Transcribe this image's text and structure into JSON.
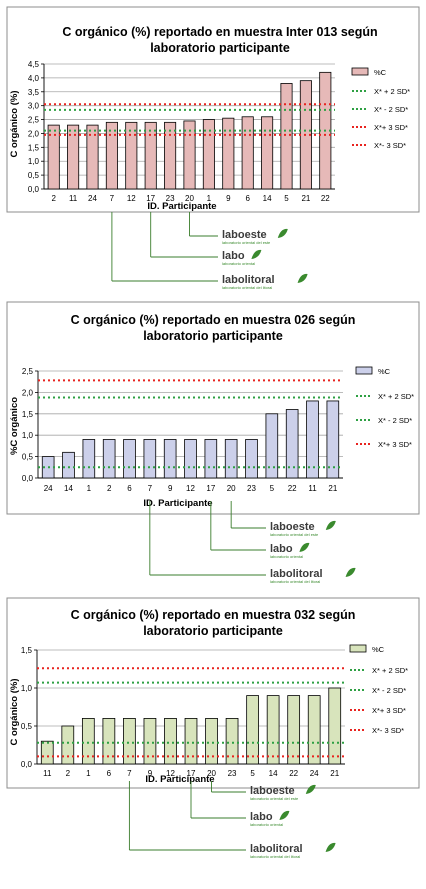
{
  "chart_data": [
    {
      "type": "bar",
      "title_lines": [
        "C orgánico (%) reportado en muestra Inter 013 según",
        "laboratorio participante"
      ],
      "ylabel": "C orgánico (%)",
      "xlabel": "ID. Participante",
      "ylim": [
        0,
        4.5
      ],
      "ytick_step": 0.5,
      "categories": [
        "2",
        "11",
        "24",
        "7",
        "12",
        "17",
        "23",
        "20",
        "1",
        "9",
        "6",
        "14",
        "5",
        "21",
        "22"
      ],
      "series": [
        {
          "name": "%C",
          "values": [
            2.3,
            2.3,
            2.3,
            2.4,
            2.4,
            2.4,
            2.4,
            2.45,
            2.5,
            2.55,
            2.6,
            2.6,
            3.8,
            3.9,
            4.2
          ],
          "fill": "#e6b9b8",
          "stroke": "#000000"
        }
      ],
      "reference_lines": [
        {
          "name": "X* + 2 SD*",
          "value": 2.85,
          "color": "#2ea043"
        },
        {
          "name": "X* - 2 SD*",
          "value": 2.1,
          "color": "#2ea043"
        },
        {
          "name": "X*+ 3 SD*",
          "value": 3.05,
          "color": "#e8231f"
        },
        {
          "name": "X*- 3 SD*",
          "value": 1.95,
          "color": "#e8231f"
        }
      ],
      "legend_position": "right",
      "grid": true
    },
    {
      "type": "bar",
      "title_lines": [
        "C orgánico (%) reportado en muestra 026 según",
        "laboratorio participante"
      ],
      "ylabel": "%C orgánico",
      "xlabel": "ID. Participante",
      "ylim": [
        0,
        2.5
      ],
      "ytick_step": 0.5,
      "categories": [
        "24",
        "14",
        "1",
        "2",
        "6",
        "7",
        "9",
        "12",
        "17",
        "20",
        "23",
        "5",
        "22",
        "11",
        "21"
      ],
      "series": [
        {
          "name": "%C",
          "values": [
            0.5,
            0.6,
            0.9,
            0.9,
            0.9,
            0.9,
            0.9,
            0.9,
            0.9,
            0.9,
            0.9,
            1.5,
            1.6,
            1.8,
            1.8
          ],
          "fill": "#ccd0ea",
          "stroke": "#000000"
        }
      ],
      "reference_lines": [
        {
          "name": "X* + 2 SD*",
          "value": 1.88,
          "color": "#2ea043"
        },
        {
          "name": "X* - 2 SD*",
          "value": 0.25,
          "color": "#2ea043"
        },
        {
          "name": "X*+ 3 SD*",
          "value": 2.28,
          "color": "#e8231f"
        }
      ],
      "legend_position": "right",
      "grid": true
    },
    {
      "type": "bar",
      "title_lines": [
        "C orgánico (%) reportado en muestra 032 según",
        "laboratorio participante"
      ],
      "ylabel": "C orgánico (%)",
      "xlabel": "ID. Participante",
      "ylim": [
        0,
        1.5
      ],
      "ytick_step": 0.5,
      "categories": [
        "11",
        "2",
        "1",
        "6",
        "7",
        "9",
        "12",
        "17",
        "20",
        "23",
        "5",
        "14",
        "22",
        "24",
        "21"
      ],
      "series": [
        {
          "name": "%C",
          "values": [
            0.3,
            0.5,
            0.6,
            0.6,
            0.6,
            0.6,
            0.6,
            0.6,
            0.6,
            0.6,
            0.9,
            0.9,
            0.9,
            0.9,
            1.0
          ],
          "fill": "#d8e4bc",
          "stroke": "#000000"
        }
      ],
      "reference_lines": [
        {
          "name": "X* + 2 SD*",
          "value": 1.07,
          "color": "#2ea043"
        },
        {
          "name": "X* - 2 SD*",
          "value": 0.28,
          "color": "#2ea043"
        },
        {
          "name": "X*+ 3 SD*",
          "value": 1.26,
          "color": "#e8231f"
        },
        {
          "name": "X*- 3 SD*",
          "value": 0.1,
          "color": "#e8231f"
        }
      ],
      "legend_position": "right",
      "grid": true
    }
  ],
  "callouts": [
    {
      "labs": [
        {
          "name": "laboeste",
          "subtitle": "laboratorio oriental del este",
          "category": "20"
        },
        {
          "name": "labo",
          "subtitle": "laboratorio oriental",
          "category": "17"
        },
        {
          "name": "labolitoral",
          "subtitle": "laboratorio oriental del litoral",
          "category": "7"
        }
      ]
    },
    {
      "labs": [
        {
          "name": "laboeste",
          "subtitle": "laboratorio oriental del este",
          "category": "20"
        },
        {
          "name": "labo",
          "subtitle": "laboratorio oriental",
          "category": "17"
        },
        {
          "name": "labolitoral",
          "subtitle": "laboratorio oriental del litoral",
          "category": "7"
        }
      ]
    },
    {
      "labs": [
        {
          "name": "laboeste",
          "subtitle": "laboratorio oriental del este",
          "category": "20"
        },
        {
          "name": "labo",
          "subtitle": "laboratorio oriental",
          "category": "17"
        },
        {
          "name": "labolitoral",
          "subtitle": "laboratorio oriental del litoral",
          "category": "7"
        }
      ]
    }
  ],
  "colors": {
    "logo_green": "#3a8a2e",
    "logo_text": "#3b3b3b",
    "callout_line": "#3a7d2c",
    "grid": "#a6a6a6",
    "frame": "#8c8c8c"
  }
}
